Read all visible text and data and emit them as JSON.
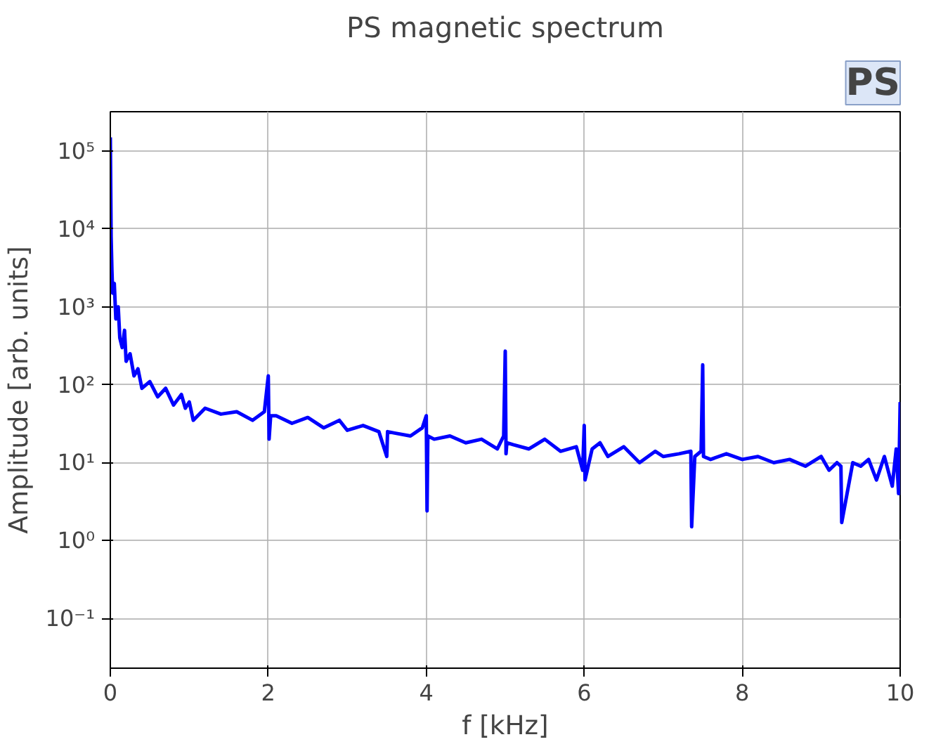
{
  "chart_data": {
    "type": "line",
    "title": "PS magnetic spectrum",
    "xlabel": "f [kHz]",
    "ylabel": "Amplitude [arb. units]",
    "annotations": [
      "PS"
    ],
    "log": "y",
    "grid": true,
    "line_style": "solid",
    "marker": "none",
    "xlim": [
      0,
      10
    ],
    "ylim": [
      0.023,
      320000
    ],
    "xticks": [
      0,
      2,
      4,
      6,
      8,
      10
    ],
    "yticks": [
      {
        "value": 0.1,
        "label": "10⁻¹"
      },
      {
        "value": 1,
        "label": "10⁰"
      },
      {
        "value": 10,
        "label": "10¹"
      },
      {
        "value": 100,
        "label": "10²"
      },
      {
        "value": 1000,
        "label": "10³"
      },
      {
        "value": 10000,
        "label": "10⁴"
      },
      {
        "value": 100000,
        "label": "10⁵"
      }
    ],
    "series": [
      {
        "color": "#0000ff",
        "x": [
          0,
          0.01,
          0.02,
          0.03,
          0.05,
          0.07,
          0.1,
          0.12,
          0.15,
          0.18,
          0.2,
          0.25,
          0.3,
          0.35,
          0.4,
          0.5,
          0.6,
          0.7,
          0.8,
          0.9,
          0.95,
          1.0,
          1.05,
          1.2,
          1.4,
          1.6,
          1.8,
          1.95,
          2.0,
          2.01,
          2.03,
          2.1,
          2.3,
          2.5,
          2.7,
          2.9,
          3.0,
          3.2,
          3.4,
          3.5,
          3.51,
          3.6,
          3.8,
          3.95,
          4.0,
          4.01,
          4.02,
          4.1,
          4.3,
          4.5,
          4.7,
          4.9,
          4.98,
          5.0,
          5.01,
          5.02,
          5.1,
          5.3,
          5.5,
          5.7,
          5.9,
          5.98,
          6.0,
          6.01,
          6.1,
          6.2,
          6.3,
          6.5,
          6.7,
          6.9,
          7.0,
          7.2,
          7.35,
          7.36,
          7.4,
          7.48,
          7.5,
          7.51,
          7.6,
          7.8,
          8.0,
          8.2,
          8.4,
          8.6,
          8.8,
          9.0,
          9.1,
          9.2,
          9.25,
          9.26,
          9.4,
          9.5,
          9.6,
          9.7,
          9.8,
          9.9,
          9.95,
          9.98,
          10.0
        ],
        "values": [
          150000,
          8000,
          3000,
          1500,
          2000,
          700,
          1000,
          400,
          300,
          500,
          200,
          250,
          130,
          160,
          90,
          110,
          70,
          90,
          55,
          75,
          50,
          60,
          35,
          50,
          42,
          45,
          35,
          45,
          130,
          20,
          40,
          40,
          32,
          38,
          28,
          35,
          26,
          30,
          25,
          12,
          25,
          24,
          22,
          28,
          40,
          2.4,
          22,
          20,
          22,
          18,
          20,
          15,
          22,
          270,
          13,
          18,
          17,
          15,
          20,
          14,
          16,
          8,
          30,
          6,
          15,
          18,
          12,
          16,
          10,
          14,
          12,
          13,
          14,
          1.5,
          12,
          14,
          180,
          12,
          11,
          13,
          11,
          12,
          10,
          11,
          9,
          12,
          8,
          10,
          9,
          1.7,
          10,
          9,
          11,
          6,
          12,
          5,
          15,
          4,
          60
        ]
      }
    ]
  }
}
